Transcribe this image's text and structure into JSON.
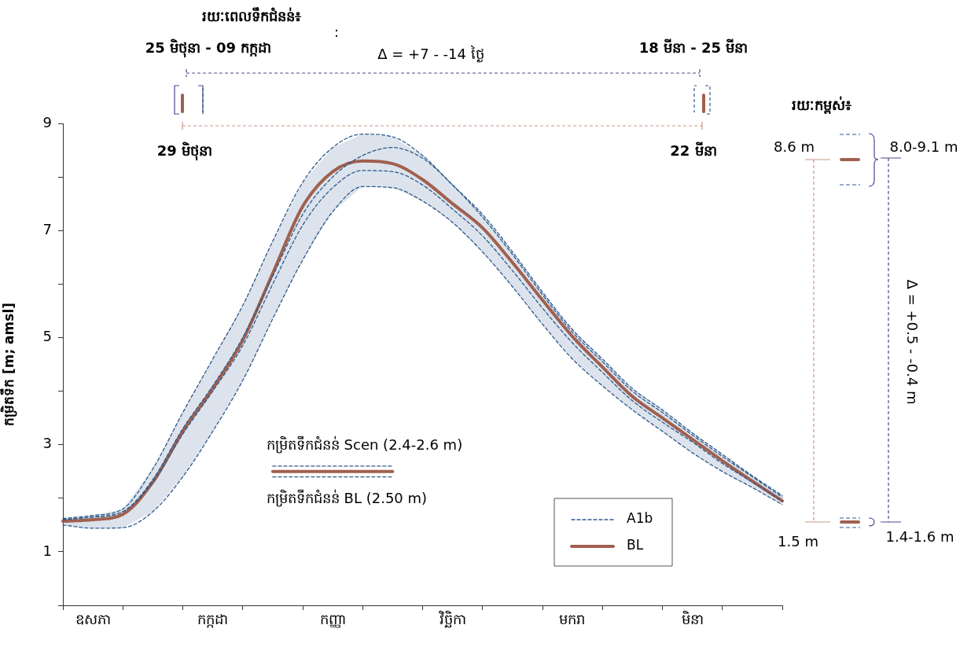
{
  "chart_data": {
    "type": "line",
    "ylabel": "កម្រិតទឹក [m; amsl]",
    "categories": [
      null,
      "ឧសភា",
      null,
      null,
      null,
      "កក្កដា",
      null,
      null,
      null,
      "កញ្ញា",
      null,
      null,
      null,
      "វិច្ឆិកា",
      null,
      null,
      null,
      "មករា",
      null,
      null,
      null,
      "មិនា",
      null,
      null,
      null
    ],
    "ylim": [
      0,
      9
    ],
    "yticks": [
      {
        "value": 0,
        "label": null
      },
      1,
      {
        "value": 2,
        "label": null
      },
      3,
      {
        "value": 4,
        "label": null
      },
      5,
      {
        "value": 6,
        "label": null
      },
      7,
      {
        "value": 8,
        "label": null
      },
      9
    ],
    "grid": false,
    "legend": "bottom right",
    "marker": "none",
    "series": [
      {
        "name": "A1b",
        "color": "#2e5a8c",
        "line_style": "dashed",
        "values": [
          1.62,
          1.68,
          1.8,
          2.55,
          3.6,
          4.6,
          5.6,
          6.8,
          7.9,
          8.55,
          8.8,
          8.75,
          8.4,
          7.85,
          7.3,
          6.6,
          5.85,
          5.15,
          4.6,
          4.05,
          3.65,
          3.22,
          2.82,
          2.42,
          2.05
        ],
        "lower": [
          1.5,
          1.44,
          1.45,
          1.75,
          2.4,
          3.25,
          4.2,
          5.35,
          6.45,
          7.35,
          7.82,
          7.8,
          7.55,
          7.15,
          6.6,
          5.95,
          5.25,
          4.6,
          4.1,
          3.65,
          3.25,
          2.85,
          2.5,
          2.2,
          1.88
        ],
        "upper": [
          1.62,
          1.68,
          1.8,
          2.55,
          3.6,
          4.6,
          5.6,
          6.8,
          7.9,
          8.55,
          8.8,
          8.75,
          8.4,
          7.85,
          7.3,
          6.6,
          5.85,
          5.15,
          4.6,
          4.05,
          3.65,
          3.22,
          2.82,
          2.42,
          2.05
        ]
      },
      {
        "color": "#2e5a8c",
        "line_style": "dashed",
        "values": [
          1.6,
          1.65,
          1.75,
          2.35,
          3.3,
          4.1,
          5.0,
          6.15,
          7.3,
          8.0,
          8.4,
          8.55,
          8.35,
          7.85,
          7.25,
          6.55,
          5.8,
          5.1,
          4.55,
          4.0,
          3.6,
          3.18,
          2.78,
          2.4,
          2.02
        ]
      },
      {
        "color": "#2e5a8c",
        "line_style": "dashed",
        "values": [
          1.6,
          1.65,
          1.75,
          2.3,
          3.2,
          4.0,
          4.85,
          6.0,
          7.1,
          7.8,
          8.12,
          8.1,
          7.85,
          7.4,
          6.9,
          6.25,
          5.55,
          4.9,
          4.35,
          3.82,
          3.42,
          3.05,
          2.65,
          2.3,
          1.95
        ]
      },
      {
        "color": "#2e5a8c",
        "line_style": "dashed",
        "values": [
          1.5,
          1.44,
          1.45,
          1.75,
          2.4,
          3.25,
          4.2,
          5.35,
          6.45,
          7.35,
          7.82,
          7.8,
          7.55,
          7.15,
          6.6,
          5.95,
          5.25,
          4.6,
          4.1,
          3.65,
          3.25,
          2.85,
          2.5,
          2.2,
          1.88
        ]
      },
      {
        "name": "BL",
        "color": "#a0604f",
        "line_style": "solid",
        "values": [
          1.57,
          1.6,
          1.7,
          2.3,
          3.25,
          4.05,
          4.95,
          6.2,
          7.45,
          8.1,
          8.3,
          8.25,
          7.95,
          7.5,
          7.05,
          6.4,
          5.7,
          5.02,
          4.45,
          3.9,
          3.5,
          3.1,
          2.7,
          2.32,
          1.95
        ]
      },
      {
        "name": "កម្រិតទឹកជំនន់ Scen (2.4-2.6 m)",
        "color": "#2e5a8c",
        "line_style": "dashed",
        "values": [
          null,
          null,
          null,
          null,
          null,
          null,
          null,
          2.6,
          2.6,
          2.6,
          2.6,
          2.6,
          null,
          null,
          null,
          null,
          null,
          null,
          null,
          null,
          null,
          null,
          null,
          null,
          null
        ]
      },
      {
        "name": "កម្រិតទឹកជំនន់ BL (2.50 m)",
        "color": "#a0604f",
        "line_style": "solid",
        "values": [
          null,
          null,
          null,
          null,
          null,
          null,
          null,
          2.5,
          2.5,
          2.5,
          2.5,
          2.5,
          null,
          null,
          null,
          null,
          null,
          null,
          null,
          null,
          null,
          null,
          null,
          null,
          null
        ]
      },
      {
        "color": "#2e5a8c",
        "line_style": "dashed",
        "values": [
          null,
          null,
          null,
          null,
          null,
          null,
          null,
          2.4,
          2.4,
          2.4,
          2.4,
          2.4,
          null,
          null,
          null,
          null,
          null,
          null,
          null,
          null,
          null,
          null,
          null,
          null,
          null
        ]
      }
    ],
    "annotations": [
      "រយៈពេលទឹកជំនន់៖",
      ":",
      "25 មិថុនា - 09 កក្កដា",
      "Δ = +7 - -14 ថ្ងៃ",
      "18 មីនា - 25 មីនា",
      "29 មិថុនា",
      "22 មីនា",
      "រយៈកម្ពស់៖",
      "8.6 m",
      "8.0-9.1 m",
      "1.5 m",
      "1.4-1.6 m",
      "Δ = +0.5 - -0.4 m"
    ]
  }
}
